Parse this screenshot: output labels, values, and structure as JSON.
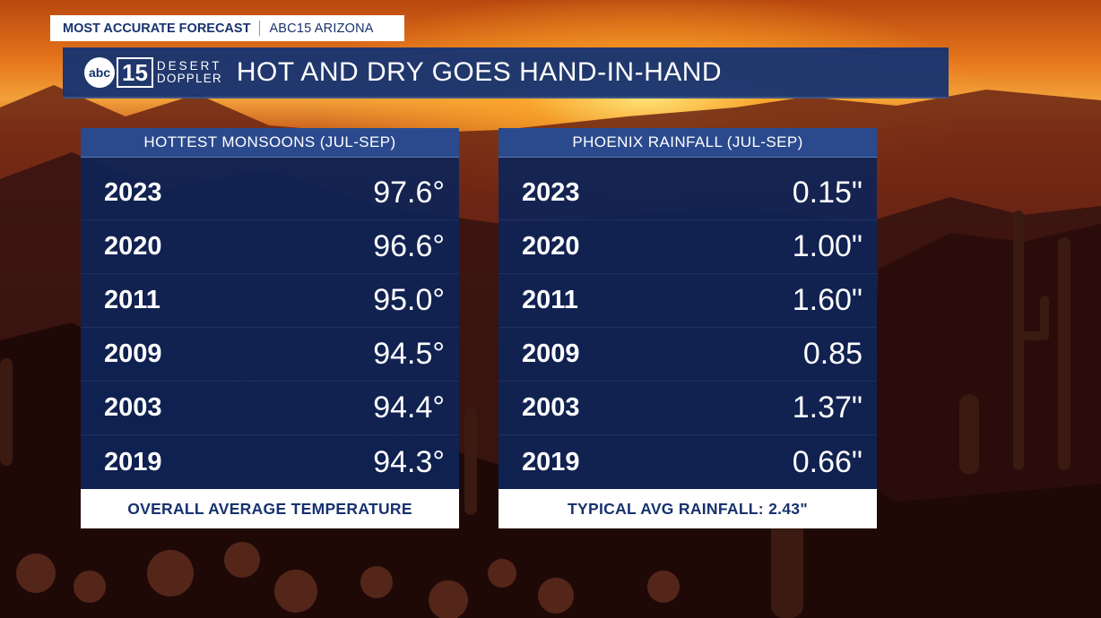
{
  "tag": {
    "primary": "MOST ACCURATE FORECAST",
    "secondary": "ABC15 ARIZONA"
  },
  "logo": {
    "network": "abc",
    "channel": "15",
    "brand_line1": "DESERT",
    "brand_line2": "DOPPLER"
  },
  "title": "HOT AND DRY GOES HAND-IN-HAND",
  "left_panel": {
    "header": "HOTTEST MONSOONS (JUL-SEP)",
    "rows": [
      {
        "year": "2023",
        "value": "97.6°"
      },
      {
        "year": "2020",
        "value": "96.6°"
      },
      {
        "year": "2011",
        "value": "95.0°"
      },
      {
        "year": "2009",
        "value": "94.5°"
      },
      {
        "year": "2003",
        "value": "94.4°"
      },
      {
        "year": "2019",
        "value": "94.3°"
      }
    ],
    "footer": "OVERALL AVERAGE TEMPERATURE"
  },
  "right_panel": {
    "header": "PHOENIX RAINFALL (JUL-SEP)",
    "rows": [
      {
        "year": "2023",
        "value": "0.15\""
      },
      {
        "year": "2020",
        "value": "1.00\""
      },
      {
        "year": "2011",
        "value": "1.60\""
      },
      {
        "year": "2009",
        "value": "0.85"
      },
      {
        "year": "2003",
        "value": "1.37\""
      },
      {
        "year": "2019",
        "value": "0.66\""
      }
    ],
    "footer": "TYPICAL AVG RAINFALL: 2.43\""
  },
  "colors": {
    "navy": "#17326e",
    "panel_body": "#0e2456",
    "panel_header": "#2b4a8e",
    "sunset_orange": "#e7761c"
  }
}
